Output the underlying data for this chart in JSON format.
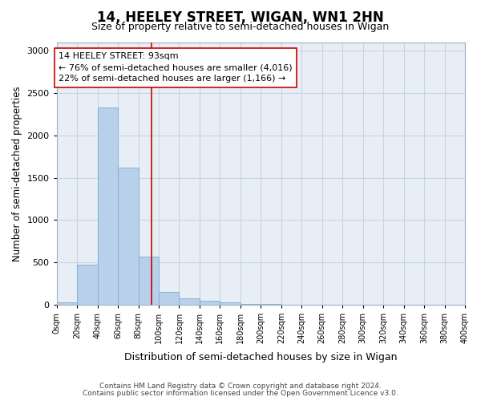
{
  "title": "14, HEELEY STREET, WIGAN, WN1 2HN",
  "subtitle": "Size of property relative to semi-detached houses in Wigan",
  "xlabel": "Distribution of semi-detached houses by size in Wigan",
  "ylabel": "Number of semi-detached properties",
  "annotation_title": "14 HEELEY STREET: 93sqm",
  "annotation_line1": "← 76% of semi-detached houses are smaller (4,016)",
  "annotation_line2": "22% of semi-detached houses are larger (1,166) →",
  "property_size": 93,
  "bar_color": "#b8d0ea",
  "bar_edge_color": "#7aaed4",
  "vline_color": "#cc0000",
  "annotation_box_color": "#ffffff",
  "annotation_box_edge": "#cc0000",
  "grid_color": "#c8d4e4",
  "plot_bg_color": "#e8eef6",
  "fig_bg_color": "#ffffff",
  "footer1": "Contains HM Land Registry data © Crown copyright and database right 2024.",
  "footer2": "Contains public sector information licensed under the Open Government Licence v3.0.",
  "bins": [
    0,
    20,
    40,
    60,
    80,
    100,
    120,
    140,
    160,
    180,
    200,
    220,
    240,
    260,
    280,
    300,
    320,
    340,
    360,
    380,
    400
  ],
  "bin_labels": [
    "0sqm",
    "20sqm",
    "40sqm",
    "60sqm",
    "80sqm",
    "100sqm",
    "120sqm",
    "140sqm",
    "160sqm",
    "180sqm",
    "200sqm",
    "220sqm",
    "240sqm",
    "260sqm",
    "280sqm",
    "300sqm",
    "320sqm",
    "340sqm",
    "360sqm",
    "380sqm",
    "400sqm"
  ],
  "counts": [
    28,
    470,
    2330,
    1620,
    570,
    150,
    80,
    45,
    30,
    8,
    5,
    0,
    0,
    0,
    0,
    0,
    0,
    0,
    0,
    0
  ],
  "ylim": [
    0,
    3100
  ],
  "yticks": [
    0,
    500,
    1000,
    1500,
    2000,
    2500,
    3000
  ]
}
